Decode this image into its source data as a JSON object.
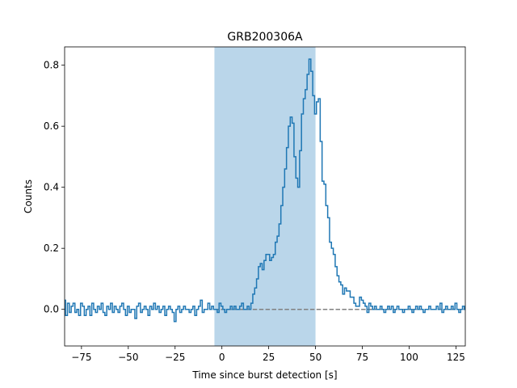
{
  "chart_data": {
    "type": "line",
    "title": "GRB200306A",
    "xlabel": "Time since burst detection [s]",
    "ylabel": "Counts",
    "xlim": [
      -84,
      130
    ],
    "ylim": [
      -0.12,
      0.86
    ],
    "xticks": [
      -75,
      -50,
      -25,
      0,
      25,
      50,
      75,
      100,
      125
    ],
    "xtick_labels": [
      "−75",
      "−50",
      "−25",
      "0",
      "25",
      "50",
      "75",
      "100",
      "125"
    ],
    "yticks": [
      0.0,
      0.2,
      0.4,
      0.6,
      0.8
    ],
    "ytick_labels": [
      "0.0",
      "0.2",
      "0.4",
      "0.6",
      "0.8"
    ],
    "grid": false,
    "highlight_region": {
      "x": [
        -4,
        50
      ],
      "color": "#bad6ea"
    },
    "baseline": {
      "y": 0,
      "x": [
        -4,
        130
      ],
      "style": "dashed",
      "color": "#808080"
    },
    "series": [
      {
        "color": "#1f77b4",
        "step": "mid",
        "x_start": -84,
        "bin_width": 1,
        "values": [
          0.03,
          -0.02,
          0.02,
          -0.01,
          0.01,
          0.02,
          -0.01,
          0.0,
          -0.02,
          0.02,
          0.01,
          -0.02,
          0.0,
          0.01,
          -0.02,
          0.02,
          0.0,
          -0.01,
          0.01,
          0.0,
          0.02,
          -0.01,
          -0.02,
          0.01,
          0.0,
          0.02,
          -0.01,
          0.01,
          0.0,
          -0.01,
          0.01,
          0.02,
          0.0,
          -0.02,
          0.01,
          -0.01,
          0.0,
          0.0,
          -0.03,
          0.01,
          0.02,
          -0.01,
          0.0,
          0.01,
          0.0,
          -0.02,
          0.01,
          0.0,
          0.02,
          0.0,
          0.01,
          -0.01,
          0.0,
          0.01,
          -0.02,
          0.0,
          0.01,
          0.0,
          -0.01,
          -0.04,
          0.0,
          0.01,
          -0.01,
          0.0,
          0.01,
          0.0,
          0.0,
          -0.01,
          0.0,
          0.01,
          -0.02,
          0.0,
          0.01,
          0.03,
          -0.01,
          0.0,
          0.0,
          0.02,
          0.0,
          0.01,
          0.0,
          0.0,
          -0.01,
          0.02,
          0.01,
          0.0,
          -0.01,
          0.0,
          0.0,
          0.01,
          0.0,
          0.01,
          0.0,
          0.0,
          0.01,
          0.02,
          0.0,
          0.0,
          0.01,
          0.0,
          0.02,
          0.05,
          0.07,
          0.1,
          0.14,
          0.15,
          0.13,
          0.16,
          0.18,
          0.18,
          0.16,
          0.17,
          0.18,
          0.22,
          0.24,
          0.28,
          0.34,
          0.4,
          0.46,
          0.53,
          0.6,
          0.63,
          0.61,
          0.5,
          0.43,
          0.4,
          0.52,
          0.64,
          0.69,
          0.72,
          0.77,
          0.82,
          0.78,
          0.7,
          0.64,
          0.68,
          0.69,
          0.55,
          0.42,
          0.41,
          0.34,
          0.3,
          0.22,
          0.2,
          0.18,
          0.14,
          0.11,
          0.09,
          0.08,
          0.05,
          0.07,
          0.06,
          0.06,
          0.04,
          0.04,
          0.02,
          0.01,
          0.01,
          0.04,
          0.03,
          0.02,
          0.01,
          -0.01,
          0.02,
          0.01,
          0.0,
          0.01,
          0.0,
          0.0,
          0.01,
          0.0,
          -0.01,
          0.0,
          0.01,
          0.0,
          0.01,
          -0.01,
          0.0,
          0.01,
          0.0,
          0.0,
          -0.01,
          0.0,
          0.0,
          0.01,
          0.0,
          -0.01,
          0.0,
          0.01,
          0.0,
          0.01,
          0.0,
          -0.01,
          0.0,
          0.0,
          0.01,
          0.0,
          0.0,
          0.0,
          0.01,
          0.0,
          0.02,
          -0.01,
          0.0,
          0.01,
          0.0,
          0.0,
          0.01,
          0.0,
          0.02,
          0.0,
          -0.01,
          0.0,
          0.01,
          0.0,
          0.01,
          0.0,
          0.0,
          0.0,
          0.02,
          0.01,
          0.0,
          -0.01,
          0.0,
          0.02,
          0.0,
          0.0,
          0.0,
          0.03,
          0.0,
          0.0,
          0.0,
          -0.01,
          0.0,
          -0.01,
          0.02,
          0.0,
          0.0,
          0.0,
          0.0,
          0.0,
          0.0,
          0.0,
          -0.01,
          0.01,
          0.0,
          0.0,
          0.0,
          0.01,
          0.0,
          -0.02,
          0.0,
          0.0,
          0.0,
          0.01,
          -0.01,
          0.0,
          -0.03,
          0.0,
          0.0,
          0.0,
          0.01,
          0.0,
          -0.01,
          0.0,
          0.0,
          0.0,
          0.0,
          0.01,
          0.0,
          0.0,
          0.0,
          0.0,
          0.01,
          0.0,
          -0.01,
          0.0,
          0.0,
          0.0,
          0.0,
          0.0,
          -0.02,
          0.0,
          0.02,
          -0.01,
          0.0,
          0.02,
          0.01
        ]
      }
    ]
  }
}
